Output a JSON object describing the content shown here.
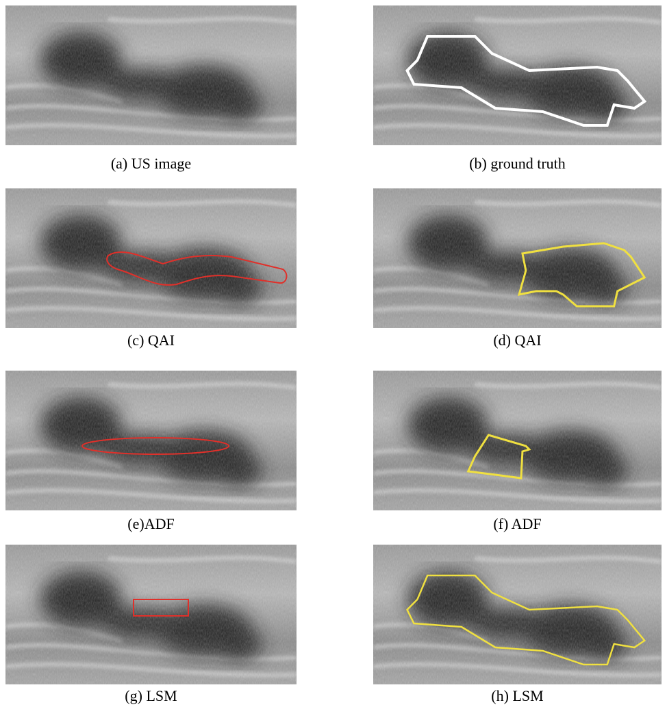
{
  "panels": [
    {
      "caption": "(a) US image"
    },
    {
      "caption": "(b) ground truth"
    },
    {
      "caption": "(c) QAI"
    },
    {
      "caption": "(d) QAI"
    },
    {
      "caption": "(e)ADF"
    },
    {
      "caption": "(f) ADF"
    },
    {
      "caption": "(g) LSM"
    },
    {
      "caption": "(h) LSM"
    }
  ]
}
